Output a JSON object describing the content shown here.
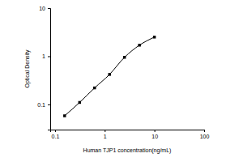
{
  "chart_data": {
    "type": "line",
    "x_label": "Human TJP1 concentration(ng/mL)",
    "y_label": "Optical Density",
    "x": [
      0.156,
      0.3125,
      0.625,
      1.25,
      2.5,
      5,
      10
    ],
    "values": [
      0.058,
      0.11,
      0.22,
      0.42,
      0.95,
      1.7,
      2.5
    ],
    "color": "#000000",
    "marker": "square",
    "line_style": "solid",
    "log": true,
    "xlim": [
      0.08,
      100
    ],
    "xticks": [
      0.1,
      1,
      10,
      100
    ],
    "ylim": [
      0.03,
      10
    ],
    "yticks": [
      0.1,
      1,
      10
    ]
  }
}
